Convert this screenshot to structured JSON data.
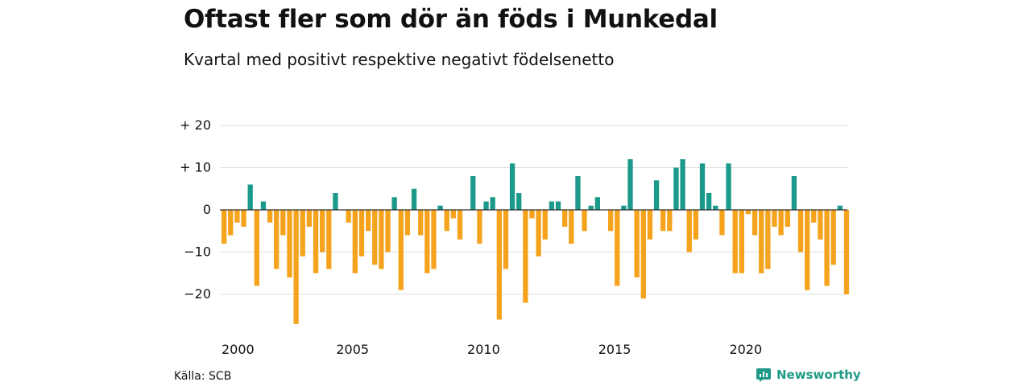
{
  "title": "Oftast fler som dör än föds i Munkedal",
  "subtitle": "Kvartal med positivt respektive negativt födelsenetto",
  "source": "Källa: SCB",
  "logo_text": "Newsworthy",
  "colors": {
    "positive": "#1b9a8b",
    "negative": "#f5a31c",
    "grid": "#dddddd",
    "baseline": "#333333",
    "brand": "#1f9a86"
  },
  "chart_data": {
    "type": "bar",
    "x_start": "2000 Q1",
    "ytick_labels": [
      "+ 20",
      "+ 10",
      "0",
      "−10",
      "−20"
    ],
    "yticks": [
      20,
      10,
      0,
      -10,
      -20
    ],
    "xtick_labels": [
      "2000",
      "2005",
      "2010",
      "2015",
      "2020"
    ],
    "ylim": [
      -27,
      20
    ],
    "grid": true,
    "values": [
      -8,
      -6,
      -3,
      -4,
      6,
      -18,
      2,
      -3,
      -14,
      -6,
      -16,
      -27,
      -11,
      -4,
      -15,
      -10,
      -14,
      4,
      0,
      -3,
      -15,
      -11,
      -5,
      -13,
      -14,
      -10,
      3,
      -19,
      -6,
      5,
      -6,
      -15,
      -14,
      1,
      -5,
      -2,
      -7,
      0,
      8,
      -8,
      2,
      3,
      -26,
      -14,
      11,
      4,
      -22,
      -2,
      -11,
      -7,
      2,
      2,
      -4,
      -8,
      8,
      -5,
      1,
      3,
      0,
      -5,
      -18,
      1,
      12,
      -16,
      -21,
      -7,
      7,
      -5,
      -5,
      10,
      12,
      -10,
      -7,
      11,
      4,
      1,
      -6,
      11,
      -15,
      -15,
      -1,
      -6,
      -15,
      -14,
      -4,
      -6,
      -4,
      8,
      -10,
      -19,
      -3,
      -7,
      -18,
      -13,
      1,
      -20
    ]
  }
}
